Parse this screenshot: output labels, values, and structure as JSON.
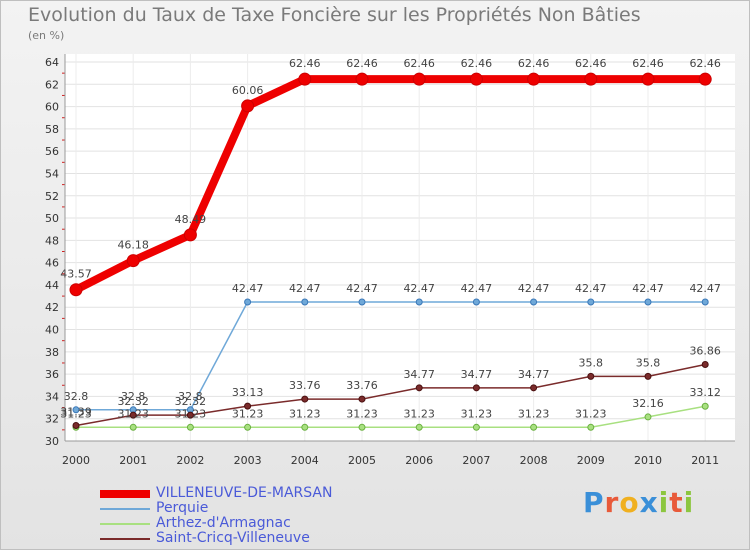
{
  "chart_data": {
    "type": "line",
    "title": "Evolution du Taux de Taxe Foncière sur les Propriétés Non Bâties",
    "ylabel": "(en %)",
    "xlabel": "",
    "categories": [
      "2000",
      "2001",
      "2002",
      "2003",
      "2004",
      "2005",
      "2006",
      "2007",
      "2008",
      "2009",
      "2010",
      "2011"
    ],
    "ylim": [
      30,
      64
    ],
    "yticks": [
      30,
      32,
      34,
      36,
      38,
      40,
      42,
      44,
      46,
      48,
      50,
      52,
      54,
      56,
      58,
      60,
      62,
      64
    ],
    "series": [
      {
        "name": "VILLENEUVE-DE-MARSAN",
        "color": "#ee0000",
        "values": [
          43.57,
          46.18,
          48.49,
          60.06,
          62.46,
          62.46,
          62.46,
          62.46,
          62.46,
          62.46,
          62.46,
          62.46
        ],
        "labels": [
          "43.57",
          "46.18",
          "48.49",
          "60.06",
          "62.46",
          "62.46",
          "62.46",
          "62.46",
          "62.46",
          "62.46",
          "62.46",
          "62.46"
        ]
      },
      {
        "name": "Perquie",
        "color": "#6fa8d8",
        "values": [
          32.8,
          32.8,
          32.8,
          42.47,
          42.47,
          42.47,
          42.47,
          42.47,
          42.47,
          42.47,
          42.47,
          42.47
        ],
        "labels": [
          "32.8",
          "32.8",
          "32.8",
          "42.47",
          "42.47",
          "42.47",
          "42.47",
          "42.47",
          "42.47",
          "42.47",
          "42.47",
          "42.47"
        ]
      },
      {
        "name": "Arthez-d'Armagnac",
        "color": "#a8e080",
        "values": [
          31.23,
          31.23,
          31.23,
          31.23,
          31.23,
          31.23,
          31.23,
          31.23,
          31.23,
          31.23,
          32.16,
          33.12
        ],
        "labels": [
          "31.23",
          "31.23",
          "31.23",
          "31.23",
          "31.23",
          "31.23",
          "31.23",
          "31.23",
          "31.23",
          "31.23",
          "32.16",
          "33.12"
        ]
      },
      {
        "name": "Saint-Cricq-Villeneuve",
        "color": "#7a2b2b",
        "values": [
          31.39,
          32.32,
          32.32,
          33.13,
          33.76,
          33.76,
          34.77,
          34.77,
          34.77,
          35.8,
          35.8,
          36.86
        ],
        "labels": [
          "31.39",
          "32.32",
          "32.32",
          "33.13",
          "33.76",
          "33.76",
          "34.77",
          "34.77",
          "34.77",
          "35.8",
          "35.8",
          "36.86"
        ]
      }
    ]
  },
  "logo": {
    "letters": [
      "P",
      "r",
      "o",
      "x",
      "i",
      "t",
      "i"
    ],
    "colors": [
      "#3a8fd8",
      "#e85a3a",
      "#f0b020",
      "#3a8fd8",
      "#8cc63f",
      "#e85a3a",
      "#8cc63f"
    ]
  }
}
